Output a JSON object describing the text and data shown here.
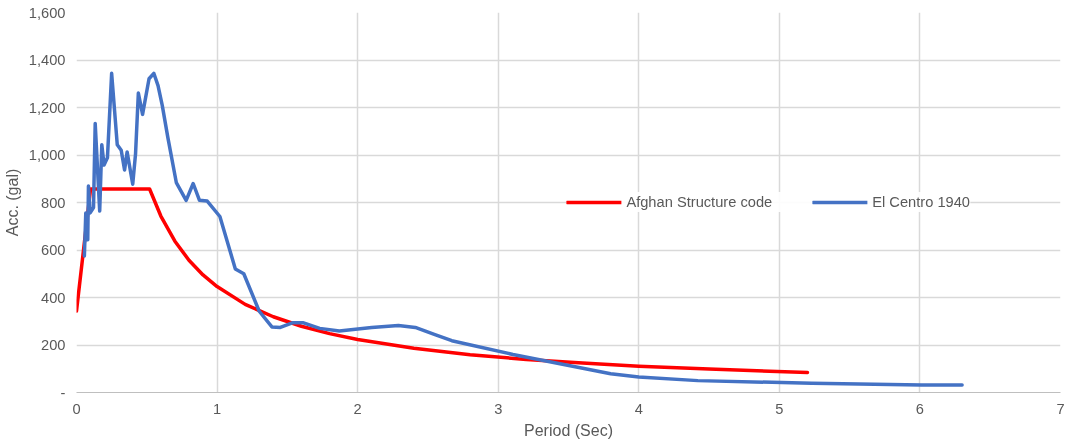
{
  "chart_data": {
    "type": "line",
    "xlabel": "Period (Sec)",
    "ylabel": "Acc. (gal)",
    "xlim": [
      0,
      7
    ],
    "xticks": [
      0,
      1,
      2,
      3,
      4,
      5,
      6,
      7
    ],
    "ylim": [
      0,
      1600
    ],
    "yticks": [
      {
        "value": 0,
        "label": "-"
      },
      {
        "value": 200,
        "label": "200"
      },
      {
        "value": 400,
        "label": "400"
      },
      {
        "value": 600,
        "label": "600"
      },
      {
        "value": 800,
        "label": "800"
      },
      {
        "value": 1000,
        "label": "1,000"
      },
      {
        "value": 1200,
        "label": "1,200"
      },
      {
        "value": 1400,
        "label": "1,400"
      },
      {
        "value": 1600,
        "label": "1,600"
      }
    ],
    "grid": true,
    "legend": "right",
    "marker": "none",
    "line_style": "solid",
    "series": [
      {
        "name": "Afghan Structure code",
        "color": "#ff0000",
        "x": [
          0,
          0.1,
          0.52,
          0.6,
          0.7,
          0.8,
          0.9,
          1.0,
          1.2,
          1.4,
          1.6,
          1.8,
          2.0,
          2.4,
          2.8,
          3.2,
          3.6,
          4.0,
          4.5,
          5.2
        ],
        "values": [
          343,
          857,
          857,
          743,
          637,
          557,
          495,
          446,
          371,
          319,
          279,
          248,
          223,
          186,
          159,
          139,
          124,
          111,
          99,
          84
        ]
      },
      {
        "name": "El Centro 1940",
        "color": "#4472c4",
        "x": [
          0.056,
          0.066,
          0.08,
          0.085,
          0.097,
          0.121,
          0.133,
          0.165,
          0.18,
          0.196,
          0.22,
          0.25,
          0.29,
          0.318,
          0.342,
          0.36,
          0.4,
          0.42,
          0.44,
          0.47,
          0.516,
          0.55,
          0.58,
          0.61,
          0.65,
          0.71,
          0.78,
          0.83,
          0.875,
          0.93,
          1.02,
          1.13,
          1.19,
          1.3,
          1.39,
          1.45,
          1.54,
          1.61,
          1.73,
          1.87,
          2.1,
          2.29,
          2.41,
          2.55,
          2.67,
          3.105,
          3.8,
          4.0,
          4.42,
          5.23,
          6.01,
          6.3
        ],
        "values": [
          575,
          756,
          643,
          869,
          756,
          779,
          1133,
          764,
          1043,
          958,
          988,
          1344,
          1043,
          1020,
          937,
          1013,
          877,
          1005,
          1261,
          1171,
          1321,
          1344,
          1292,
          1209,
          1073,
          884,
          809,
          880,
          809,
          806,
          741,
          520,
          500,
          342,
          276,
          274,
          294,
          294,
          270,
          259,
          274,
          282,
          274,
          244,
          218,
          160,
          79,
          65,
          50,
          39,
          32,
          32
        ]
      }
    ]
  }
}
